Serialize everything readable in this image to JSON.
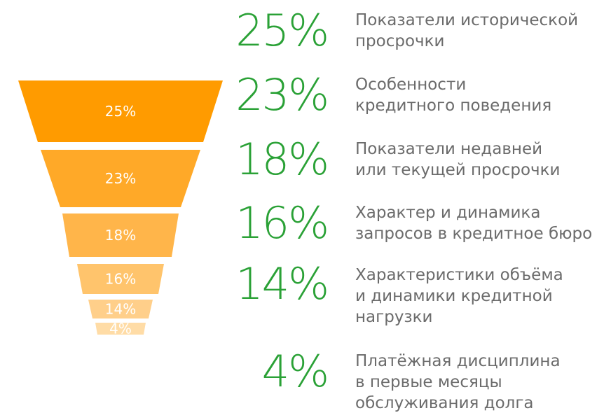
{
  "chart_data": {
    "type": "funnel",
    "categories": [
      "Показатели исторической\nпросрочки",
      "Особенности\nкредитного поведения",
      "Показатели недавней\nили текущей просрочки",
      "Характер и динамика\nзапросов в кредитное бюро",
      "Характеристики объёма\nи динамики кредитной\nнагрузки",
      "Платёжная дисциплина\nв первые месяцы\nобслуживания долга"
    ],
    "values": [
      25,
      23,
      18,
      16,
      14,
      4
    ],
    "value_labels": [
      "25%",
      "23%",
      "18%",
      "16%",
      "14%",
      "4%"
    ],
    "colors": [
      "#ff9b00",
      "#ffa928",
      "#ffb54a",
      "#ffc46c",
      "#ffcf8a",
      "#ffdca6"
    ],
    "value_text_color": "#2aa136",
    "description_color": "#6b6b6b",
    "title": "",
    "xlabel": "",
    "ylabel": ""
  }
}
